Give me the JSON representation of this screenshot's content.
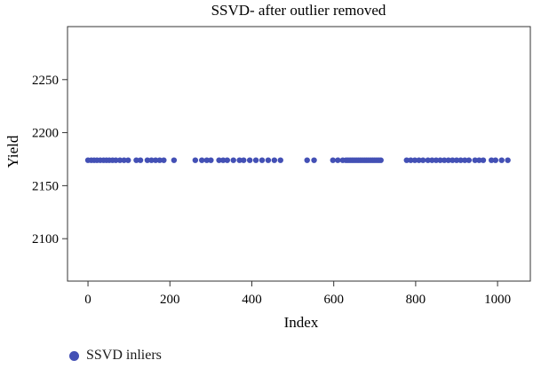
{
  "chart_data": {
    "type": "scatter",
    "title": "SSVD- after outlier removed",
    "xlabel": "Index",
    "ylabel": "Yield",
    "xlim": [
      -50,
      1080
    ],
    "ylim": [
      2060,
      2300
    ],
    "xticks": [
      0,
      200,
      400,
      600,
      800,
      1000
    ],
    "yticks": [
      2100,
      2150,
      2200,
      2250
    ],
    "grid": false,
    "legend_position": "bottom-left",
    "series": [
      {
        "name": "SSVD inliers",
        "color": "#4350b5",
        "y_value": 2174,
        "x": [
          0,
          8,
          15,
          22,
          30,
          38,
          45,
          52,
          60,
          68,
          78,
          88,
          98,
          118,
          128,
          145,
          155,
          165,
          175,
          185,
          210,
          262,
          278,
          290,
          300,
          320,
          330,
          340,
          355,
          370,
          380,
          395,
          410,
          425,
          440,
          455,
          470,
          535,
          552,
          598,
          610,
          622,
          630,
          635,
          640,
          645,
          650,
          655,
          660,
          665,
          670,
          675,
          680,
          685,
          690,
          695,
          700,
          705,
          710,
          715,
          778,
          788,
          798,
          808,
          818,
          830,
          840,
          850,
          860,
          870,
          880,
          890,
          900,
          910,
          920,
          930,
          945,
          955,
          965,
          985,
          995,
          1010,
          1025
        ]
      }
    ]
  }
}
